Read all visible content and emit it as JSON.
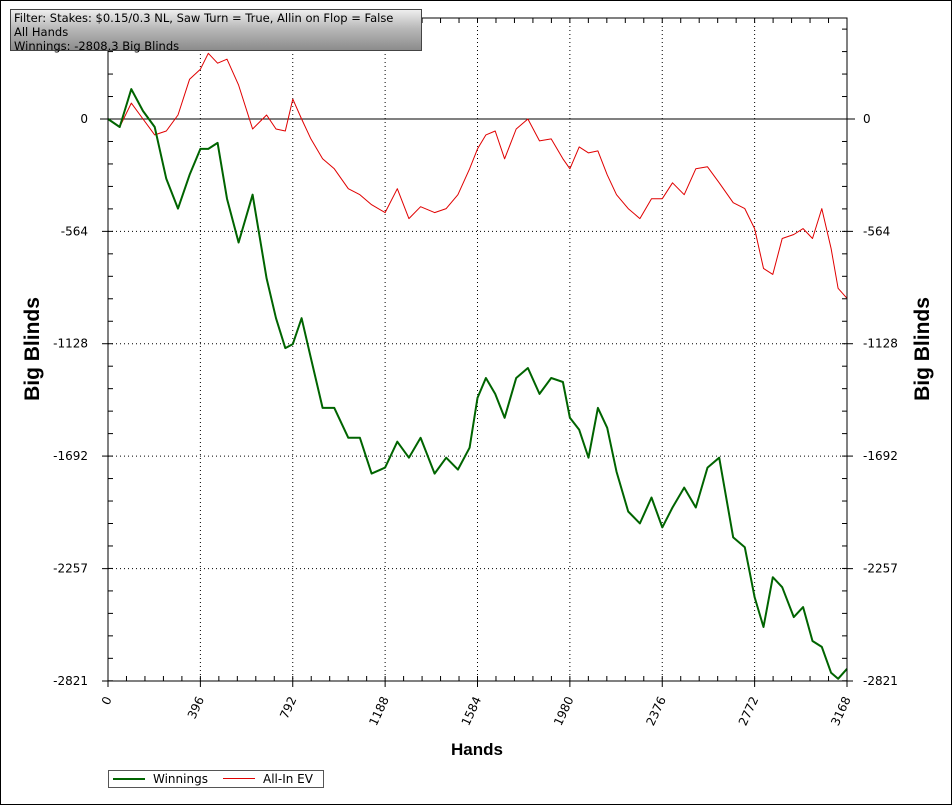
{
  "info_box": {
    "filter_text": "Filter: Stakes: $0.15/0.3 NL, Saw Turn = True, Allin on Flop = False",
    "hands_text": "All Hands",
    "winnings_text": "Winnings: -2808.3 Big Blinds"
  },
  "chart_data": {
    "type": "line",
    "title": "",
    "xlabel": "Hands",
    "ylabel": "Big Blinds",
    "xlim": [
      0,
      3168
    ],
    "ylim": [
      -2821,
      282
    ],
    "xticks": [
      "0",
      "396",
      "792",
      "1188",
      "1584",
      "1980",
      "2376",
      "2772",
      "3168"
    ],
    "yticks": [
      "0",
      "-564",
      "-1128",
      "-1692",
      "-2257",
      "-2821"
    ],
    "x": [
      0,
      50,
      100,
      150,
      200,
      250,
      300,
      350,
      396,
      430,
      470,
      510,
      560,
      620,
      680,
      720,
      760,
      792,
      830,
      870,
      920,
      970,
      1030,
      1080,
      1130,
      1188,
      1240,
      1290,
      1340,
      1400,
      1450,
      1500,
      1550,
      1584,
      1620,
      1660,
      1700,
      1750,
      1800,
      1850,
      1900,
      1950,
      1980,
      2020,
      2060,
      2100,
      2140,
      2180,
      2230,
      2280,
      2330,
      2376,
      2420,
      2470,
      2520,
      2570,
      2620,
      2680,
      2730,
      2772,
      2810,
      2850,
      2890,
      2940,
      2980,
      3020,
      3060,
      3100,
      3130,
      3168
    ],
    "series": [
      {
        "name": "Winnings",
        "color": "#006400",
        "values": [
          0,
          -40,
          150,
          40,
          -40,
          -300,
          -450,
          -280,
          -150,
          -150,
          -120,
          -400,
          -620,
          -380,
          -800,
          -1000,
          -1150,
          -1130,
          -1000,
          -1200,
          -1450,
          -1450,
          -1600,
          -1600,
          -1780,
          -1750,
          -1620,
          -1700,
          -1600,
          -1780,
          -1700,
          -1760,
          -1650,
          -1400,
          -1300,
          -1380,
          -1500,
          -1300,
          -1250,
          -1380,
          -1300,
          -1320,
          -1500,
          -1560,
          -1700,
          -1450,
          -1550,
          -1770,
          -1970,
          -2030,
          -1900,
          -2050,
          -1950,
          -1850,
          -1950,
          -1750,
          -1700,
          -2100,
          -2150,
          -2400,
          -2550,
          -2300,
          -2350,
          -2500,
          -2450,
          -2620,
          -2650,
          -2780,
          -2810,
          -2760
        ]
      },
      {
        "name": "All-In EV",
        "color": "#e00000",
        "values": [
          0,
          -40,
          80,
          0,
          -80,
          -60,
          20,
          200,
          250,
          330,
          280,
          300,
          170,
          -50,
          20,
          -50,
          -60,
          100,
          0,
          -100,
          -200,
          -250,
          -350,
          -380,
          -430,
          -470,
          -350,
          -500,
          -440,
          -470,
          -450,
          -380,
          -250,
          -150,
          -80,
          -60,
          -200,
          -50,
          0,
          -110,
          -100,
          -200,
          -250,
          -140,
          -170,
          -160,
          -280,
          -380,
          -450,
          -500,
          -400,
          -400,
          -320,
          -380,
          -250,
          -240,
          -320,
          -420,
          -450,
          -550,
          -750,
          -780,
          -600,
          -580,
          -550,
          -600,
          -450,
          -650,
          -850,
          -900
        ]
      }
    ],
    "grid": true,
    "legend": "bottom-left"
  }
}
